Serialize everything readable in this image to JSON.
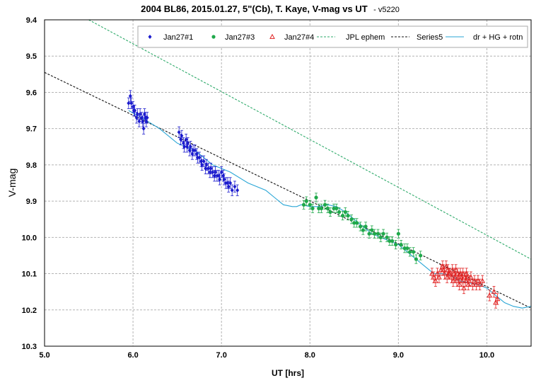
{
  "chart_data": {
    "type": "scatter",
    "title": "2004 BL86, 2015.01.27, 5\"(Cb), T. Kaye, V-mag vs UT",
    "subtitle": "- v5220",
    "xlabel": "UT [hrs]",
    "ylabel": "V-mag",
    "xlim": [
      5.0,
      10.5
    ],
    "ylim": [
      9.4,
      10.3
    ],
    "y_inverted": true,
    "grid": true,
    "legend_position": "top-right",
    "x_ticks": [
      "5.0",
      "6.0",
      "7.0",
      "8.0",
      "9.0",
      "10.0"
    ],
    "y_ticks": [
      "9.4",
      "9.5",
      "9.6",
      "9.7",
      "9.8",
      "9.9",
      "10.0",
      "10.1",
      "10.2",
      "10.3"
    ],
    "series": [
      {
        "name": "Jan27#1",
        "marker": "diamond",
        "color": "#1a1acd",
        "x": [
          5.95,
          5.97,
          5.98,
          6.0,
          6.01,
          6.02,
          6.04,
          6.05,
          6.07,
          6.08,
          6.1,
          6.11,
          6.12,
          6.13,
          6.14,
          6.15,
          6.16,
          6.52,
          6.54,
          6.55,
          6.57,
          6.58,
          6.6,
          6.61,
          6.62,
          6.64,
          6.65,
          6.67,
          6.68,
          6.7,
          6.72,
          6.73,
          6.75,
          6.77,
          6.78,
          6.8,
          6.82,
          6.83,
          6.85,
          6.87,
          6.88,
          6.9,
          6.92,
          6.93,
          6.95,
          6.97,
          6.98,
          7.0,
          7.02,
          7.03,
          7.05,
          7.07,
          7.08,
          7.1,
          7.12,
          7.15,
          7.18
        ],
        "y": [
          9.63,
          9.61,
          9.63,
          9.64,
          9.65,
          9.65,
          9.67,
          9.66,
          9.68,
          9.66,
          9.67,
          9.68,
          9.7,
          9.66,
          9.67,
          9.68,
          9.67,
          9.71,
          9.73,
          9.72,
          9.74,
          9.75,
          9.73,
          9.75,
          9.74,
          9.76,
          9.75,
          9.77,
          9.76,
          9.76,
          9.77,
          9.78,
          9.78,
          9.79,
          9.8,
          9.79,
          9.81,
          9.8,
          9.81,
          9.82,
          9.81,
          9.82,
          9.83,
          9.82,
          9.83,
          9.83,
          9.84,
          9.82,
          9.83,
          9.84,
          9.85,
          9.85,
          9.86,
          9.85,
          9.87,
          9.86,
          9.87
        ],
        "err": 0.015
      },
      {
        "name": "Jan27#3",
        "marker": "circle",
        "color": "#1fa84a",
        "x": [
          7.93,
          7.96,
          8.0,
          8.03,
          8.07,
          8.1,
          8.13,
          8.17,
          8.2,
          8.23,
          8.27,
          8.3,
          8.33,
          8.37,
          8.4,
          8.43,
          8.47,
          8.5,
          8.53,
          8.57,
          8.6,
          8.63,
          8.67,
          8.7,
          8.73,
          8.77,
          8.8,
          8.83,
          8.87,
          8.9,
          8.93,
          8.97,
          9.0,
          9.03,
          9.07,
          9.1,
          9.13,
          9.17,
          9.2,
          9.25
        ],
        "y": [
          9.91,
          9.9,
          9.91,
          9.92,
          9.89,
          9.92,
          9.92,
          9.91,
          9.92,
          9.93,
          9.92,
          9.92,
          9.93,
          9.94,
          9.93,
          9.94,
          9.95,
          9.96,
          9.96,
          9.97,
          9.98,
          9.97,
          9.99,
          9.98,
          9.99,
          9.99,
          10.0,
          9.99,
          10.0,
          10.01,
          10.01,
          10.02,
          9.99,
          10.02,
          10.03,
          10.03,
          10.04,
          10.04,
          10.06,
          10.05
        ],
        "err": 0.012
      },
      {
        "name": "Jan27#4",
        "marker": "triangle-open",
        "color": "#e02020",
        "x": [
          9.38,
          9.4,
          9.42,
          9.44,
          9.46,
          9.48,
          9.5,
          9.51,
          9.52,
          9.54,
          9.55,
          9.56,
          9.57,
          9.58,
          9.6,
          9.61,
          9.62,
          9.63,
          9.64,
          9.65,
          9.66,
          9.67,
          9.68,
          9.69,
          9.7,
          9.71,
          9.72,
          9.73,
          9.74,
          9.75,
          9.76,
          9.77,
          9.78,
          9.79,
          9.8,
          9.82,
          9.84,
          9.86,
          9.88,
          9.9,
          9.92,
          9.95,
          10.03,
          10.08,
          10.1,
          10.12
        ],
        "y": [
          10.1,
          10.11,
          10.12,
          10.1,
          10.11,
          10.09,
          10.08,
          10.09,
          10.1,
          10.08,
          10.11,
          10.09,
          10.1,
          10.1,
          10.11,
          10.09,
          10.12,
          10.1,
          10.11,
          10.09,
          10.12,
          10.1,
          10.11,
          10.13,
          10.1,
          10.11,
          10.12,
          10.1,
          10.14,
          10.11,
          10.12,
          10.1,
          10.11,
          10.13,
          10.12,
          10.11,
          10.13,
          10.12,
          10.13,
          10.12,
          10.13,
          10.12,
          10.16,
          10.15,
          10.18,
          10.17
        ],
        "err": 0.015
      },
      {
        "name": "JPL ephem",
        "style": "dashed",
        "color": "#2eaa6a",
        "x": [
          5.5,
          10.5
        ],
        "y": [
          9.4,
          10.06
        ]
      },
      {
        "name": "Series5",
        "style": "dashed",
        "color": "#111111",
        "x": [
          5.0,
          10.5
        ],
        "y": [
          9.545,
          10.195
        ]
      },
      {
        "name": "dr + HG + rotn",
        "style": "solid",
        "color": "#2aa6d6",
        "x": [
          5.95,
          6.1,
          6.3,
          6.5,
          6.7,
          6.9,
          7.1,
          7.3,
          7.5,
          7.6,
          7.7,
          7.8,
          7.85,
          7.9,
          8.0,
          8.1,
          8.2,
          8.3,
          8.4,
          8.5,
          8.6,
          8.7,
          8.8,
          8.9,
          9.0,
          9.1,
          9.2,
          9.3,
          9.4,
          9.5,
          9.6,
          9.7,
          9.8,
          9.9,
          10.0,
          10.1,
          10.2,
          10.3,
          10.4,
          10.5
        ],
        "y": [
          9.65,
          9.67,
          9.7,
          9.74,
          9.76,
          9.8,
          9.82,
          9.85,
          9.87,
          9.89,
          9.91,
          9.915,
          9.915,
          9.91,
          9.915,
          9.915,
          9.91,
          9.915,
          9.93,
          9.95,
          9.97,
          9.99,
          10.0,
          10.01,
          10.02,
          10.04,
          10.06,
          10.08,
          10.1,
          10.1,
          10.105,
          10.12,
          10.125,
          10.13,
          10.14,
          10.16,
          10.18,
          10.19,
          10.195,
          10.19
        ]
      }
    ]
  }
}
